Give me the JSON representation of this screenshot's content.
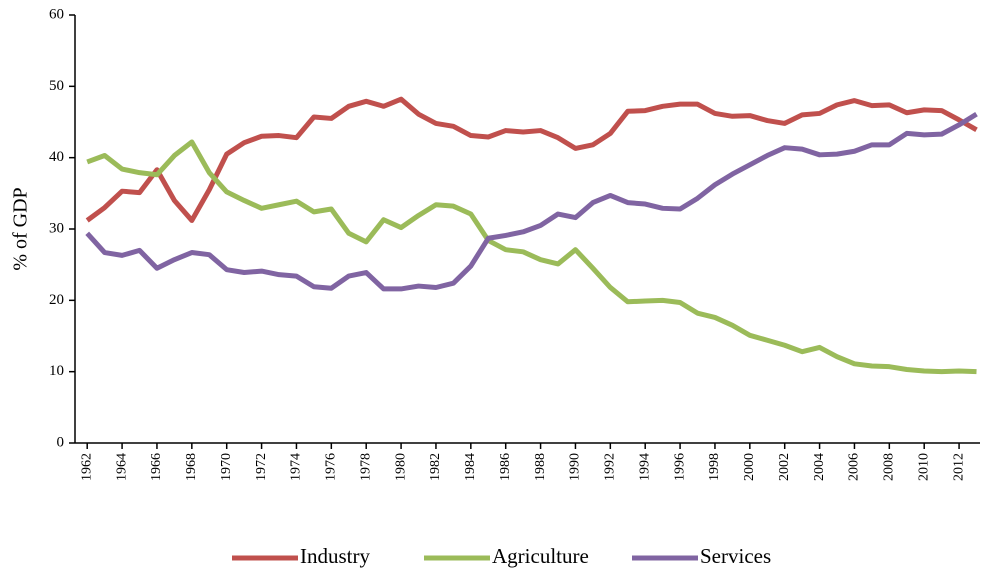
{
  "chart_data": {
    "type": "line",
    "y_label": "% of GDP",
    "x": [
      1962,
      1963,
      1964,
      1965,
      1966,
      1967,
      1968,
      1969,
      1970,
      1971,
      1972,
      1973,
      1974,
      1975,
      1976,
      1977,
      1978,
      1979,
      1980,
      1981,
      1982,
      1983,
      1984,
      1985,
      1986,
      1987,
      1988,
      1989,
      1990,
      1991,
      1992,
      1993,
      1994,
      1995,
      1996,
      1997,
      1998,
      1999,
      2000,
      2001,
      2002,
      2003,
      2004,
      2005,
      2006,
      2007,
      2008,
      2009,
      2010,
      2011,
      2012,
      2013
    ],
    "xlim": [
      1961.3,
      2013.2
    ],
    "xticks": [
      1962,
      1964,
      1966,
      1968,
      1970,
      1972,
      1974,
      1976,
      1978,
      1980,
      1982,
      1984,
      1986,
      1988,
      1990,
      1992,
      1994,
      1996,
      1998,
      2000,
      2002,
      2004,
      2006,
      2008,
      2010,
      2012
    ],
    "ylim": [
      0,
      60
    ],
    "yticks": [
      0,
      10,
      20,
      30,
      40,
      50,
      60
    ],
    "legend": "bottom",
    "series": [
      {
        "name": "Industry",
        "color": "#c0504d",
        "values": [
          31.2,
          33,
          35.3,
          35.1,
          38.3,
          34,
          31.2,
          35.5,
          40.5,
          42.1,
          43,
          43.1,
          42.8,
          45.7,
          45.5,
          47.2,
          47.9,
          47.2,
          48.2,
          46.1,
          44.8,
          44.4,
          43.1,
          42.9,
          43.8,
          43.6,
          43.8,
          42.8,
          41.3,
          41.8,
          43.4,
          46.5,
          46.6,
          47.2,
          47.5,
          47.5,
          46.2,
          45.8,
          45.9,
          45.2,
          44.8,
          46,
          46.2,
          47.4,
          48,
          47.3,
          47.4,
          46.3,
          46.7,
          46.6,
          45.3,
          43.9
        ]
      },
      {
        "name": "Agriculture",
        "color": "#9bbb59",
        "values": [
          39.4,
          40.3,
          38.4,
          37.9,
          37.6,
          40.3,
          42.2,
          37.9,
          35.2,
          34,
          32.9,
          33.4,
          33.9,
          32.4,
          32.8,
          29.4,
          28.2,
          31.3,
          30.2,
          31.9,
          33.4,
          33.2,
          32.1,
          28.4,
          27.1,
          26.8,
          25.7,
          25.1,
          27.1,
          24.5,
          21.8,
          19.8,
          19.9,
          20,
          19.7,
          18.2,
          17.6,
          16.5,
          15.1,
          14.4,
          13.7,
          12.8,
          13.4,
          12.1,
          11.1,
          10.8,
          10.7,
          10.3,
          10.1,
          10,
          10.1,
          10
        ]
      },
      {
        "name": "Services",
        "color": "#8064a2",
        "values": [
          29.4,
          26.7,
          26.3,
          27,
          24.5,
          25.7,
          26.7,
          26.4,
          24.3,
          23.9,
          24.1,
          23.6,
          23.4,
          21.9,
          21.7,
          23.4,
          23.9,
          21.6,
          21.6,
          22,
          21.8,
          22.4,
          24.8,
          28.7,
          29.1,
          29.6,
          30.5,
          32.1,
          31.6,
          33.7,
          34.7,
          33.7,
          33.5,
          32.9,
          32.8,
          34.3,
          36.2,
          37.7,
          39,
          40.3,
          41.4,
          41.2,
          40.4,
          40.5,
          40.9,
          41.8,
          41.8,
          43.4,
          43.2,
          43.3,
          44.6,
          46.1
        ]
      }
    ]
  }
}
